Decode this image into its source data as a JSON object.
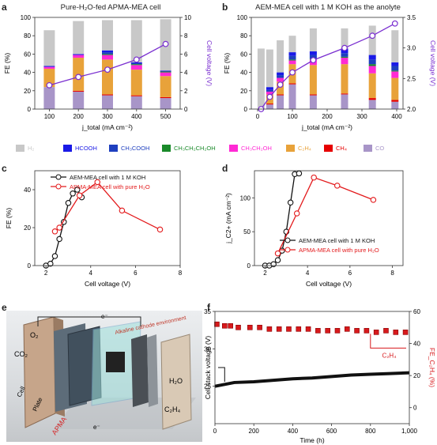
{
  "panels": {
    "a": {
      "label": "a",
      "title": "Pure-H₂O-fed APMA-MEA cell"
    },
    "b": {
      "label": "b",
      "title": "AEM-MEA cell with 1 M KOH as the anolyte"
    },
    "c": {
      "label": "c"
    },
    "d": {
      "label": "d"
    },
    "e": {
      "label": "e"
    },
    "f": {
      "label": "f"
    }
  },
  "legend": [
    {
      "name": "H₂",
      "color": "#c8c8c8"
    },
    {
      "name": "HCOOH",
      "color": "#1a1ae6"
    },
    {
      "name": "CH₃COOH",
      "color": "#1e3fbf"
    },
    {
      "name": "CH₃CH₂CH₂OH",
      "color": "#1a8a2a"
    },
    {
      "name": "CH₃CH₂OH",
      "color": "#ff2ad4"
    },
    {
      "name": "C₂H₄",
      "color": "#e8a23a"
    },
    {
      "name": "CH₄",
      "color": "#e60000"
    },
    {
      "name": "CO",
      "color": "#a895c8"
    }
  ],
  "chart_data": [
    {
      "id": "a",
      "type": "bar",
      "xlabel": "j_total (mA cm⁻²)",
      "ylabel": "FE (%)",
      "y2label": "Cell voltage (V)",
      "categories": [
        100,
        200,
        300,
        400,
        500
      ],
      "ylim": [
        0,
        100
      ],
      "y2lim": [
        0,
        10
      ],
      "yticks": [
        0,
        20,
        40,
        60,
        80,
        100
      ],
      "y2ticks": [
        0,
        2,
        4,
        6,
        8,
        10
      ],
      "stacks": [
        {
          "CO": 24,
          "CH4": 0,
          "C2H4": 20,
          "CH3CH2OH": 2,
          "CH3CH2CH2OH": 0,
          "CH3COOH": 0,
          "HCOOH": 1,
          "H2": 39
        },
        {
          "CO": 19,
          "CH4": 1,
          "C2H4": 36,
          "CH3CH2OH": 3,
          "CH3CH2CH2OH": 0,
          "CH3COOH": 0,
          "HCOOH": 1,
          "H2": 36
        },
        {
          "CO": 15,
          "CH4": 1,
          "C2H4": 38,
          "CH3CH2OH": 5,
          "CH3CH2CH2OH": 1,
          "CH3COOH": 2,
          "HCOOH": 2,
          "H2": 33
        },
        {
          "CO": 14,
          "CH4": 1,
          "C2H4": 28,
          "CH3CH2OH": 5,
          "CH3CH2CH2OH": 1,
          "CH3COOH": 1,
          "HCOOH": 1,
          "H2": 46
        },
        {
          "CO": 12,
          "CH4": 1,
          "C2H4": 23,
          "CH3CH2OH": 4,
          "CH3CH2CH2OH": 1,
          "CH3COOH": 0,
          "HCOOH": 1,
          "H2": 56
        }
      ],
      "voltage": [
        {
          "x": 100,
          "y": 2.6
        },
        {
          "x": 200,
          "y": 3.5
        },
        {
          "x": 300,
          "y": 4.3
        },
        {
          "x": 400,
          "y": 5.4
        },
        {
          "x": 500,
          "y": 7.1
        }
      ]
    },
    {
      "id": "b",
      "type": "bar",
      "xlabel": "j_total (mA cm⁻²)",
      "ylabel": "FE (%)",
      "y2label": "Cell voltage (V)",
      "xlim": [
        0,
        400
      ],
      "ylim": [
        0,
        100
      ],
      "y2lim": [
        2.0,
        3.5
      ],
      "xticks": [
        0,
        100,
        200,
        300,
        400
      ],
      "yticks": [
        0,
        20,
        40,
        60,
        80,
        100
      ],
      "y2ticks": [
        2.0,
        2.5,
        3.0,
        3.5
      ],
      "stacks": [
        {
          "x": 10,
          "CO": 0,
          "CH4": 0,
          "C2H4": 0,
          "CH3CH2OH": 0,
          "CH3CH2CH2OH": 0,
          "CH3COOH": 0,
          "HCOOH": 0,
          "H2": 66
        },
        {
          "x": 35,
          "CO": 5,
          "CH4": 1,
          "C2H4": 10,
          "CH3CH2OH": 3,
          "CH3CH2CH2OH": 0,
          "CH3COOH": 2,
          "HCOOH": 3,
          "H2": 41
        },
        {
          "x": 65,
          "CO": 15,
          "CH4": 1,
          "C2H4": 14,
          "CH3CH2OH": 4,
          "CH3CH2CH2OH": 0,
          "CH3COOH": 3,
          "HCOOH": 3,
          "H2": 35
        },
        {
          "x": 100,
          "CO": 27,
          "CH4": 1,
          "C2H4": 21,
          "CH3CH2OH": 4,
          "CH3CH2CH2OH": 1,
          "CH3COOH": 4,
          "HCOOH": 4,
          "H2": 18
        },
        {
          "x": 160,
          "CO": 15,
          "CH4": 1,
          "C2H4": 32,
          "CH3CH2OH": 6,
          "CH3CH2CH2OH": 1,
          "CH3COOH": 4,
          "HCOOH": 4,
          "H2": 25
        },
        {
          "x": 250,
          "CO": 16,
          "CH4": 1,
          "C2H4": 32,
          "CH3CH2OH": 7,
          "CH3CH2CH2OH": 1,
          "CH3COOH": 4,
          "HCOOH": 5,
          "H2": 22
        },
        {
          "x": 330,
          "CO": 10,
          "CH4": 2,
          "C2H4": 27,
          "CH3CH2OH": 8,
          "CH3CH2CH2OH": 2,
          "CH3COOH": 5,
          "HCOOH": 5,
          "H2": 32
        },
        {
          "x": 395,
          "CO": 8,
          "CH4": 2,
          "C2H4": 24,
          "CH3CH2OH": 7,
          "CH3CH2CH2OH": 1,
          "CH3COOH": 5,
          "HCOOH": 4,
          "H2": 35
        }
      ],
      "voltage": [
        {
          "x": 10,
          "y": 2.0
        },
        {
          "x": 35,
          "y": 2.2
        },
        {
          "x": 65,
          "y": 2.4
        },
        {
          "x": 100,
          "y": 2.6
        },
        {
          "x": 160,
          "y": 2.8
        },
        {
          "x": 250,
          "y": 3.0
        },
        {
          "x": 330,
          "y": 3.2
        },
        {
          "x": 395,
          "y": 3.4
        }
      ]
    },
    {
      "id": "c",
      "type": "line",
      "xlabel": "Cell voltage (V)",
      "ylabel": "FE (%)",
      "xlim": [
        1.5,
        8
      ],
      "ylim": [
        0,
        50
      ],
      "xticks": [
        2,
        4,
        6,
        8
      ],
      "yticks": [
        0,
        20,
        40
      ],
      "series": [
        {
          "name": "AEM-MEA cell with 1 M KOH",
          "color": "#111111",
          "points": [
            [
              2.0,
              0
            ],
            [
              2.2,
              1
            ],
            [
              2.4,
              5
            ],
            [
              2.6,
              14
            ],
            [
              2.8,
              23
            ],
            [
              3.0,
              33
            ],
            [
              3.2,
              38
            ],
            [
              3.4,
              40
            ],
            [
              3.6,
              36
            ]
          ]
        },
        {
          "name": "APMA-MEA cell with pure H₂O",
          "color": "#e31a1c",
          "points": [
            [
              2.4,
              18
            ],
            [
              2.6,
              20
            ],
            [
              3.5,
              37
            ],
            [
              4.3,
              44
            ],
            [
              5.4,
              29
            ],
            [
              7.1,
              19
            ]
          ]
        }
      ]
    },
    {
      "id": "d",
      "type": "line",
      "xlabel": "Cell voltage (V)",
      "ylabel": "j_C2+ (mA cm⁻²)",
      "xlim": [
        1.5,
        8.5
      ],
      "ylim": [
        0,
        140
      ],
      "xticks": [
        2,
        4,
        6,
        8
      ],
      "yticks": [
        0,
        50,
        100
      ],
      "series": [
        {
          "name": "AEM-MEA cell with 1 M KOH",
          "color": "#111111",
          "points": [
            [
              2.0,
              0
            ],
            [
              2.2,
              0
            ],
            [
              2.4,
              2
            ],
            [
              2.6,
              8
            ],
            [
              2.8,
              22
            ],
            [
              3.0,
              50
            ],
            [
              3.2,
              93
            ],
            [
              3.4,
              135
            ],
            [
              3.6,
              136
            ]
          ]
        },
        {
          "name": "APMA-MEA cell with pure H₂O",
          "color": "#e31a1c",
          "points": [
            [
              2.6,
              18
            ],
            [
              3.5,
              77
            ],
            [
              4.3,
              130
            ],
            [
              5.4,
              118
            ],
            [
              7.1,
              97
            ]
          ]
        }
      ]
    },
    {
      "id": "f",
      "type": "scatter",
      "xlabel": "Time (h)",
      "ylabel": "Cell stack voltage (V)",
      "y2label": "FE_C₂H₄ (%)",
      "xlim": [
        0,
        1000
      ],
      "ylim": [
        20,
        35
      ],
      "y2lim": [
        -10,
        60
      ],
      "xticks": [
        0,
        200,
        400,
        600,
        800,
        1000
      ],
      "xticklabels": [
        "0",
        "200",
        "400",
        "600",
        "800",
        "1,000"
      ],
      "yticks": [
        25,
        30,
        35
      ],
      "y2ticks": [
        0,
        20,
        40,
        60
      ],
      "annotation": "C₂H₄",
      "series": [
        {
          "name": "Cell stack voltage",
          "axis": "left",
          "color": "#111111",
          "points": [
            [
              0,
              25
            ],
            [
              100,
              25.5
            ],
            [
              200,
              25.6
            ],
            [
              300,
              25.8
            ],
            [
              400,
              26.0
            ],
            [
              500,
              26.1
            ],
            [
              600,
              26.3
            ],
            [
              700,
              26.5
            ],
            [
              800,
              26.6
            ],
            [
              900,
              26.7
            ],
            [
              1000,
              26.8
            ]
          ]
        },
        {
          "name": "C₂H₄",
          "axis": "right",
          "color": "#e31a1c",
          "points": [
            [
              10,
              52
            ],
            [
              50,
              51
            ],
            [
              80,
              51
            ],
            [
              120,
              50
            ],
            [
              180,
              50
            ],
            [
              230,
              50
            ],
            [
              280,
              49
            ],
            [
              330,
              49
            ],
            [
              380,
              49
            ],
            [
              430,
              49
            ],
            [
              480,
              49
            ],
            [
              530,
              48
            ],
            [
              580,
              48
            ],
            [
              630,
              48
            ],
            [
              680,
              49
            ],
            [
              730,
              48
            ],
            [
              780,
              48
            ],
            [
              830,
              47
            ],
            [
              880,
              48
            ],
            [
              930,
              47
            ],
            [
              980,
              47
            ]
          ]
        }
      ]
    }
  ],
  "photo": {
    "labels": [
      "O₂",
      "CO₂",
      "e⁻",
      "Alkaline cathode environment",
      "H₂O",
      "C₂H₄",
      "APMA",
      "Cell",
      "Plate",
      "e⁻"
    ]
  }
}
